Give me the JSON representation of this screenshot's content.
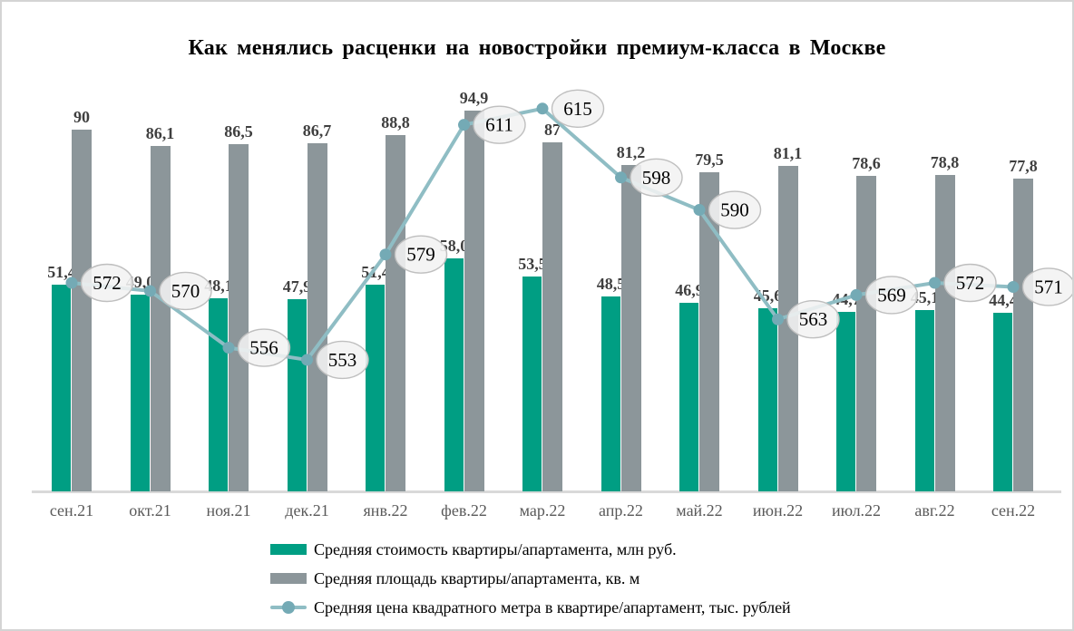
{
  "chart_data": {
    "type": "combo",
    "subtype": "grouped-bars-with-line-callouts",
    "title": "Как менялись расценки на новостройки премиум-класса в Москве",
    "categories": [
      "сен.21",
      "окт.21",
      "ноя.21",
      "дек.21",
      "янв.22",
      "фев.22",
      "мар.22",
      "апр.22",
      "май.22",
      "июн.22",
      "июл.22",
      "авг.22",
      "сен.22"
    ],
    "series": [
      {
        "name": "Средняя стоимость квартиры/апартамента, млн руб.",
        "type": "bar",
        "color": "#009e83",
        "values": [
          51.4,
          49.0,
          48.1,
          47.9,
          51.4,
          58.0,
          53.5,
          48.5,
          46.9,
          45.6,
          44.7,
          45.1,
          44.4
        ],
        "labels": [
          "51,4",
          "49,0",
          "48,1",
          "47,9",
          "51,4",
          "58,0",
          "53,5",
          "48,5",
          "46,9",
          "45,6",
          "44,7",
          "45,1",
          "44,4"
        ]
      },
      {
        "name": "Средняя площадь квартиры/апартамента, кв. м",
        "type": "bar",
        "color": "#8c969a",
        "values": [
          90,
          86.1,
          86.5,
          86.7,
          88.8,
          94.9,
          87,
          81.2,
          79.5,
          81.1,
          78.6,
          78.8,
          77.8
        ],
        "labels": [
          "90",
          "86,1",
          "86,5",
          "86,7",
          "88,8",
          "94,9",
          "87",
          "81,2",
          "79,5",
          "81,1",
          "78,6",
          "78,8",
          "77,8"
        ]
      },
      {
        "name": "Средняя цена квадратного метра в квартире/апартамент, тыс. рублей",
        "type": "line",
        "color": "#8fbdc4",
        "marker_color": "#74aab5",
        "callout_fill": "#f2f2f2",
        "callout_border": "#bfbfbf",
        "values": [
          572,
          570,
          556,
          553,
          579,
          611,
          615,
          598,
          590,
          563,
          569,
          572,
          571
        ],
        "labels": [
          "572",
          "570",
          "556",
          "553",
          "579",
          "611",
          "615",
          "598",
          "590",
          "563",
          "569",
          "572",
          "571"
        ]
      }
    ],
    "legend_position": "bottom",
    "gridlines": false,
    "value_axes_visible": false,
    "bar_axis_range_hint": [
      0,
      95
    ],
    "line_axis_range_hint": [
      550,
      620
    ],
    "colors": {
      "title": "#000000",
      "bar_label": "#3f3f3f",
      "category_label": "#595959",
      "baseline": "#d9d9d9",
      "background": "#ffffff"
    }
  }
}
